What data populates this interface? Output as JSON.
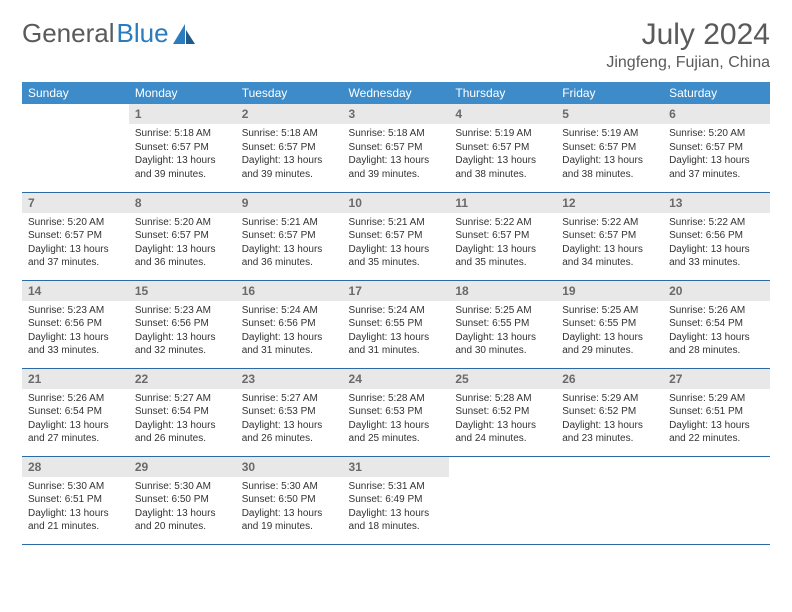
{
  "logo": {
    "text_a": "General",
    "text_b": "Blue"
  },
  "title": "July 2024",
  "location": "Jingfeng, Fujian, China",
  "colors": {
    "header_bg": "#3d8bc9",
    "header_text": "#ffffff",
    "daynum_bg": "#e8e8e8",
    "daynum_text": "#6a6a6a",
    "row_border": "#2b6aa5",
    "title_color": "#5a5a5a",
    "logo_blue": "#2b7bbf"
  },
  "day_headers": [
    "Sunday",
    "Monday",
    "Tuesday",
    "Wednesday",
    "Thursday",
    "Friday",
    "Saturday"
  ],
  "weeks": [
    [
      {
        "n": "",
        "sr": "",
        "ss": "",
        "dl": ""
      },
      {
        "n": "1",
        "sr": "Sunrise: 5:18 AM",
        "ss": "Sunset: 6:57 PM",
        "dl": "Daylight: 13 hours and 39 minutes."
      },
      {
        "n": "2",
        "sr": "Sunrise: 5:18 AM",
        "ss": "Sunset: 6:57 PM",
        "dl": "Daylight: 13 hours and 39 minutes."
      },
      {
        "n": "3",
        "sr": "Sunrise: 5:18 AM",
        "ss": "Sunset: 6:57 PM",
        "dl": "Daylight: 13 hours and 39 minutes."
      },
      {
        "n": "4",
        "sr": "Sunrise: 5:19 AM",
        "ss": "Sunset: 6:57 PM",
        "dl": "Daylight: 13 hours and 38 minutes."
      },
      {
        "n": "5",
        "sr": "Sunrise: 5:19 AM",
        "ss": "Sunset: 6:57 PM",
        "dl": "Daylight: 13 hours and 38 minutes."
      },
      {
        "n": "6",
        "sr": "Sunrise: 5:20 AM",
        "ss": "Sunset: 6:57 PM",
        "dl": "Daylight: 13 hours and 37 minutes."
      }
    ],
    [
      {
        "n": "7",
        "sr": "Sunrise: 5:20 AM",
        "ss": "Sunset: 6:57 PM",
        "dl": "Daylight: 13 hours and 37 minutes."
      },
      {
        "n": "8",
        "sr": "Sunrise: 5:20 AM",
        "ss": "Sunset: 6:57 PM",
        "dl": "Daylight: 13 hours and 36 minutes."
      },
      {
        "n": "9",
        "sr": "Sunrise: 5:21 AM",
        "ss": "Sunset: 6:57 PM",
        "dl": "Daylight: 13 hours and 36 minutes."
      },
      {
        "n": "10",
        "sr": "Sunrise: 5:21 AM",
        "ss": "Sunset: 6:57 PM",
        "dl": "Daylight: 13 hours and 35 minutes."
      },
      {
        "n": "11",
        "sr": "Sunrise: 5:22 AM",
        "ss": "Sunset: 6:57 PM",
        "dl": "Daylight: 13 hours and 35 minutes."
      },
      {
        "n": "12",
        "sr": "Sunrise: 5:22 AM",
        "ss": "Sunset: 6:57 PM",
        "dl": "Daylight: 13 hours and 34 minutes."
      },
      {
        "n": "13",
        "sr": "Sunrise: 5:22 AM",
        "ss": "Sunset: 6:56 PM",
        "dl": "Daylight: 13 hours and 33 minutes."
      }
    ],
    [
      {
        "n": "14",
        "sr": "Sunrise: 5:23 AM",
        "ss": "Sunset: 6:56 PM",
        "dl": "Daylight: 13 hours and 33 minutes."
      },
      {
        "n": "15",
        "sr": "Sunrise: 5:23 AM",
        "ss": "Sunset: 6:56 PM",
        "dl": "Daylight: 13 hours and 32 minutes."
      },
      {
        "n": "16",
        "sr": "Sunrise: 5:24 AM",
        "ss": "Sunset: 6:56 PM",
        "dl": "Daylight: 13 hours and 31 minutes."
      },
      {
        "n": "17",
        "sr": "Sunrise: 5:24 AM",
        "ss": "Sunset: 6:55 PM",
        "dl": "Daylight: 13 hours and 31 minutes."
      },
      {
        "n": "18",
        "sr": "Sunrise: 5:25 AM",
        "ss": "Sunset: 6:55 PM",
        "dl": "Daylight: 13 hours and 30 minutes."
      },
      {
        "n": "19",
        "sr": "Sunrise: 5:25 AM",
        "ss": "Sunset: 6:55 PM",
        "dl": "Daylight: 13 hours and 29 minutes."
      },
      {
        "n": "20",
        "sr": "Sunrise: 5:26 AM",
        "ss": "Sunset: 6:54 PM",
        "dl": "Daylight: 13 hours and 28 minutes."
      }
    ],
    [
      {
        "n": "21",
        "sr": "Sunrise: 5:26 AM",
        "ss": "Sunset: 6:54 PM",
        "dl": "Daylight: 13 hours and 27 minutes."
      },
      {
        "n": "22",
        "sr": "Sunrise: 5:27 AM",
        "ss": "Sunset: 6:54 PM",
        "dl": "Daylight: 13 hours and 26 minutes."
      },
      {
        "n": "23",
        "sr": "Sunrise: 5:27 AM",
        "ss": "Sunset: 6:53 PM",
        "dl": "Daylight: 13 hours and 26 minutes."
      },
      {
        "n": "24",
        "sr": "Sunrise: 5:28 AM",
        "ss": "Sunset: 6:53 PM",
        "dl": "Daylight: 13 hours and 25 minutes."
      },
      {
        "n": "25",
        "sr": "Sunrise: 5:28 AM",
        "ss": "Sunset: 6:52 PM",
        "dl": "Daylight: 13 hours and 24 minutes."
      },
      {
        "n": "26",
        "sr": "Sunrise: 5:29 AM",
        "ss": "Sunset: 6:52 PM",
        "dl": "Daylight: 13 hours and 23 minutes."
      },
      {
        "n": "27",
        "sr": "Sunrise: 5:29 AM",
        "ss": "Sunset: 6:51 PM",
        "dl": "Daylight: 13 hours and 22 minutes."
      }
    ],
    [
      {
        "n": "28",
        "sr": "Sunrise: 5:30 AM",
        "ss": "Sunset: 6:51 PM",
        "dl": "Daylight: 13 hours and 21 minutes."
      },
      {
        "n": "29",
        "sr": "Sunrise: 5:30 AM",
        "ss": "Sunset: 6:50 PM",
        "dl": "Daylight: 13 hours and 20 minutes."
      },
      {
        "n": "30",
        "sr": "Sunrise: 5:30 AM",
        "ss": "Sunset: 6:50 PM",
        "dl": "Daylight: 13 hours and 19 minutes."
      },
      {
        "n": "31",
        "sr": "Sunrise: 5:31 AM",
        "ss": "Sunset: 6:49 PM",
        "dl": "Daylight: 13 hours and 18 minutes."
      },
      {
        "n": "",
        "sr": "",
        "ss": "",
        "dl": ""
      },
      {
        "n": "",
        "sr": "",
        "ss": "",
        "dl": ""
      },
      {
        "n": "",
        "sr": "",
        "ss": "",
        "dl": ""
      }
    ]
  ]
}
